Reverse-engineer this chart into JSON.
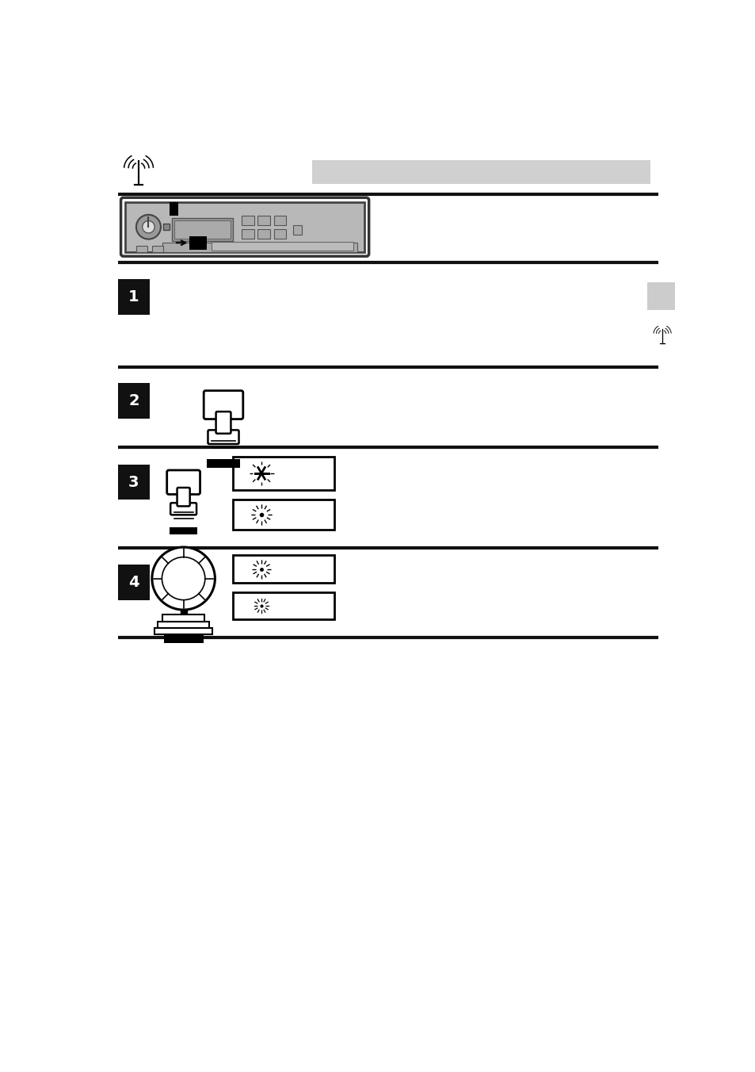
{
  "bg_color": "#ffffff",
  "page_width": 9.54,
  "page_height": 13.52,
  "header_bar_color": "#d0d0d0",
  "line_color": "#111111",
  "step_block_color": "#111111",
  "step_text_color": "#ffffff",
  "sidebar_color": "#cccccc"
}
